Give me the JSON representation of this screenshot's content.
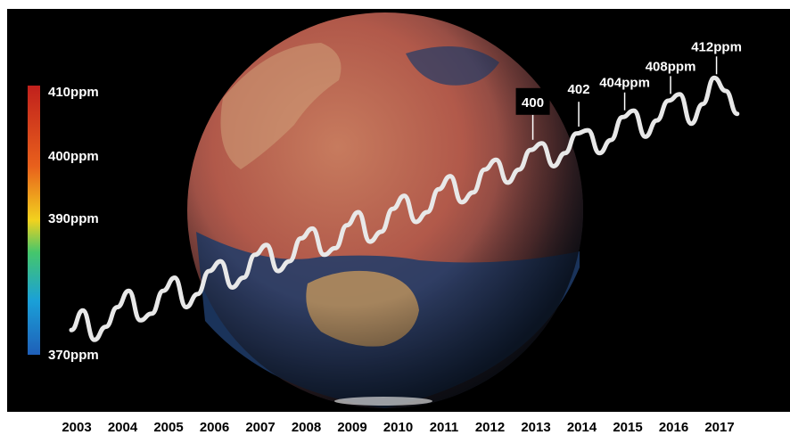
{
  "chart_data": {
    "type": "line",
    "title": "",
    "xlabel": "",
    "ylabel": "",
    "x_ticks": [
      "2003",
      "2004",
      "2005",
      "2006",
      "2007",
      "2008",
      "2009",
      "2010",
      "2011",
      "2012",
      "2013",
      "2014",
      "2015",
      "2016",
      "2017"
    ],
    "color_scale": {
      "labels": [
        "410ppm",
        "400ppm",
        "390ppm",
        "370ppm"
      ],
      "values": [
        410,
        400,
        390,
        370
      ],
      "colors": [
        "#c0201c",
        "#e8601c",
        "#f2d21e",
        "#45c66c",
        "#1aa0d8",
        "#1f5fb8"
      ]
    },
    "series": [
      {
        "x": [
          2003.0,
          2003.25,
          2003.5,
          2003.75,
          2004.0,
          2004.25,
          2004.5,
          2004.75,
          2005.0,
          2005.25,
          2005.5,
          2005.75,
          2006.0,
          2006.25,
          2006.5,
          2006.75,
          2007.0,
          2007.25,
          2007.5,
          2007.75,
          2008.0,
          2008.25,
          2008.5,
          2008.75,
          2009.0,
          2009.25,
          2009.5,
          2009.75,
          2010.0,
          2010.25,
          2010.5,
          2010.75,
          2011.0,
          2011.25,
          2011.5,
          2011.75,
          2012.0,
          2012.25,
          2012.5,
          2012.75,
          2013.0,
          2013.25,
          2013.5,
          2013.75,
          2014.0,
          2014.25,
          2014.5,
          2014.75,
          2015.0,
          2015.25,
          2015.5,
          2015.75,
          2016.0,
          2016.25,
          2016.5,
          2016.75,
          2017.0,
          2017.25,
          2017.5
        ],
        "values": [
          373.5,
          376.5,
          372.0,
          374.0,
          377.0,
          379.5,
          375.0,
          376.0,
          379.5,
          381.5,
          377.0,
          379.0,
          382.5,
          384.0,
          380.0,
          381.5,
          385.0,
          386.5,
          382.5,
          384.0,
          387.5,
          389.0,
          385.0,
          386.0,
          389.5,
          391.5,
          387.0,
          388.5,
          392.0,
          394.0,
          390.0,
          391.5,
          395.0,
          397.0,
          393.0,
          394.5,
          398.0,
          399.5,
          396.0,
          398.0,
          401.0,
          402.0,
          398.5,
          400.5,
          403.5,
          404.0,
          400.5,
          402.5,
          406.0,
          407.0,
          403.0,
          405.5,
          408.5,
          409.5,
          405.0,
          408.0,
          412.0,
          410.0,
          406.5
        ]
      }
    ],
    "annotations": [
      {
        "label": "400",
        "x": 2013.05,
        "y": 402.0,
        "boxed": true
      },
      {
        "label": "402",
        "x": 2014.05,
        "y": 404.0,
        "boxed": true
      },
      {
        "label": "404ppm",
        "x": 2015.05,
        "y": 406.5,
        "boxed": false
      },
      {
        "label": "408ppm",
        "x": 2016.05,
        "y": 409.0,
        "boxed": false
      },
      {
        "label": "412ppm",
        "x": 2017.05,
        "y": 412.0,
        "boxed": false
      }
    ]
  }
}
